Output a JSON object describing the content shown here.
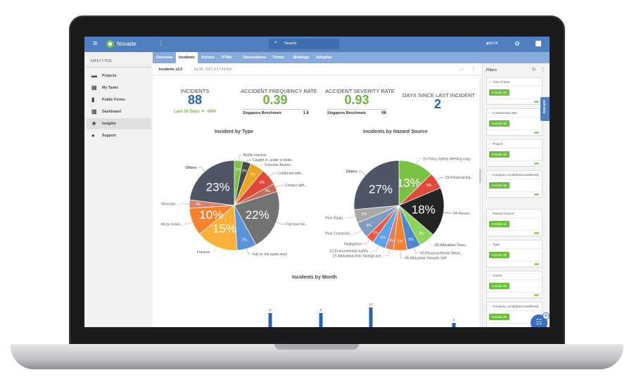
{
  "app": {
    "brand": "Novade",
    "search_placeholder": "Search",
    "beta_label": "BETA"
  },
  "sidebar": {
    "section": "SAFETY-HSE",
    "items": [
      {
        "label": "Projects",
        "icon": "briefcase-icon"
      },
      {
        "label": "My Tasks",
        "icon": "clipboard-icon"
      },
      {
        "label": "Public Forms",
        "icon": "document-icon"
      },
      {
        "label": "Dashboard",
        "icon": "bar-chart-icon"
      },
      {
        "label": "Insights",
        "icon": "star-icon",
        "active": true
      },
      {
        "label": "Support",
        "icon": "help-icon"
      }
    ]
  },
  "tabs": [
    {
      "label": "Overview"
    },
    {
      "label": "Incidents",
      "active": true
    },
    {
      "label": "Actions"
    },
    {
      "label": "PTWs"
    },
    {
      "label": "Observations"
    },
    {
      "label": "Forms"
    },
    {
      "label": "Meetings"
    },
    {
      "label": "Adoption"
    }
  ],
  "report": {
    "title": "Incidents v3.3",
    "timestamp": "Jul 28, 2021 9:27:43 AM"
  },
  "kpis": {
    "incidents": {
      "title": "INCIDENTS",
      "value": "88",
      "period": "Last 30 Days ▼",
      "change": "-50%"
    },
    "afr": {
      "title": "ACCIDENT FREQUENCY RATE",
      "value": "0.39",
      "bench_label": "Singapore Benchmark",
      "bench_value": "1.6"
    },
    "asr": {
      "title": "ACCIDENT SEVERITY RATE",
      "value": "0.93",
      "bench_label": "Singapore Benchmark",
      "bench_value": "66"
    },
    "days": {
      "title": "DAYS SINCE LAST INCIDENT",
      "value": "2"
    }
  },
  "colors": {
    "blue": "#2a63ad",
    "green": "#6db33f",
    "header": "#4f7fbf"
  },
  "chart_data": [
    {
      "type": "pie",
      "title": "Incident by Type",
      "slices": [
        {
          "label": "Bodily reaction",
          "value": 3,
          "color": "#7bc143"
        },
        {
          "label": "Caught in, under or betw...",
          "value": 3,
          "color": "#4a4a4a"
        },
        {
          "label": "Concrete Beams",
          "value": 5,
          "color": "#e8a624"
        },
        {
          "label": "Confirmed with...",
          "value": 6,
          "color": "#e04a3a"
        },
        {
          "label": "Contact with...",
          "value": 3,
          "color": "#c0705a"
        },
        {
          "label": "Fall from hei...",
          "value": 22,
          "color": "#737373"
        },
        {
          "label": "Fall on the same level",
          "value": 7,
          "color": "#5b93d6"
        },
        {
          "label": "Fracture",
          "value": 15,
          "color": "#fbb03b"
        },
        {
          "label": "Hit by movin...",
          "value": 10,
          "color": "#f7812f"
        },
        {
          "label": "Muscular ...",
          "value": 3,
          "color": "#d9826a"
        },
        {
          "label": "Others",
          "value": 23,
          "color": "#4f5565"
        }
      ]
    },
    {
      "type": "pie",
      "title": "Incidents by Hazard Source",
      "slices": [
        {
          "label": "01-Policy-Safety Meeting notp...",
          "value": 13,
          "color": "#7bc143"
        },
        {
          "label": "03-Personal-Ina...",
          "value": 6,
          "color": "#e04a3a"
        },
        {
          "label": "04-Person...",
          "value": 18,
          "color": "#242424"
        },
        {
          "label": "05-Attitudinal-Towa...",
          "value": 6,
          "color": "#8fd45a"
        },
        {
          "label": "05-Personal-Resist Weari...",
          "value": 5,
          "color": "#4f88cf"
        },
        {
          "label": "06-Attitudinal-Towards Self",
          "value": 5,
          "color": "#f7812f"
        },
        {
          "label": "07-Attitudinal-Risk Taking/Lack...",
          "value": 3,
          "color": "#d9826a"
        },
        {
          "label": "12-Environmental-Safety ...",
          "value": 5,
          "color": "#5ea3e8"
        },
        {
          "label": "Negligence",
          "value": 3,
          "color": "#f05545"
        },
        {
          "label": "Poor Constructi...",
          "value": 6,
          "color": "#7f9bbf"
        },
        {
          "label": "Poor Equip...",
          "value": 5,
          "color": "#a8a8a8"
        },
        {
          "label": "Others",
          "value": 27,
          "color": "#4f5565"
        }
      ]
    },
    {
      "type": "bar",
      "title": "Incidents by Month",
      "values": [
        9,
        9,
        10,
        3
      ],
      "color": "#2a63ad"
    }
  ],
  "filters": {
    "title": "Filters",
    "include_label": "Include all",
    "self_help": "Self Help",
    "badge": "49",
    "items": [
      "Time Frame",
      "Construction Site",
      "Project",
      "Company (undefined.undefined)",
      "Hazard Source",
      "Type",
      "Cause",
      "Company (undefined.undefined)"
    ]
  }
}
